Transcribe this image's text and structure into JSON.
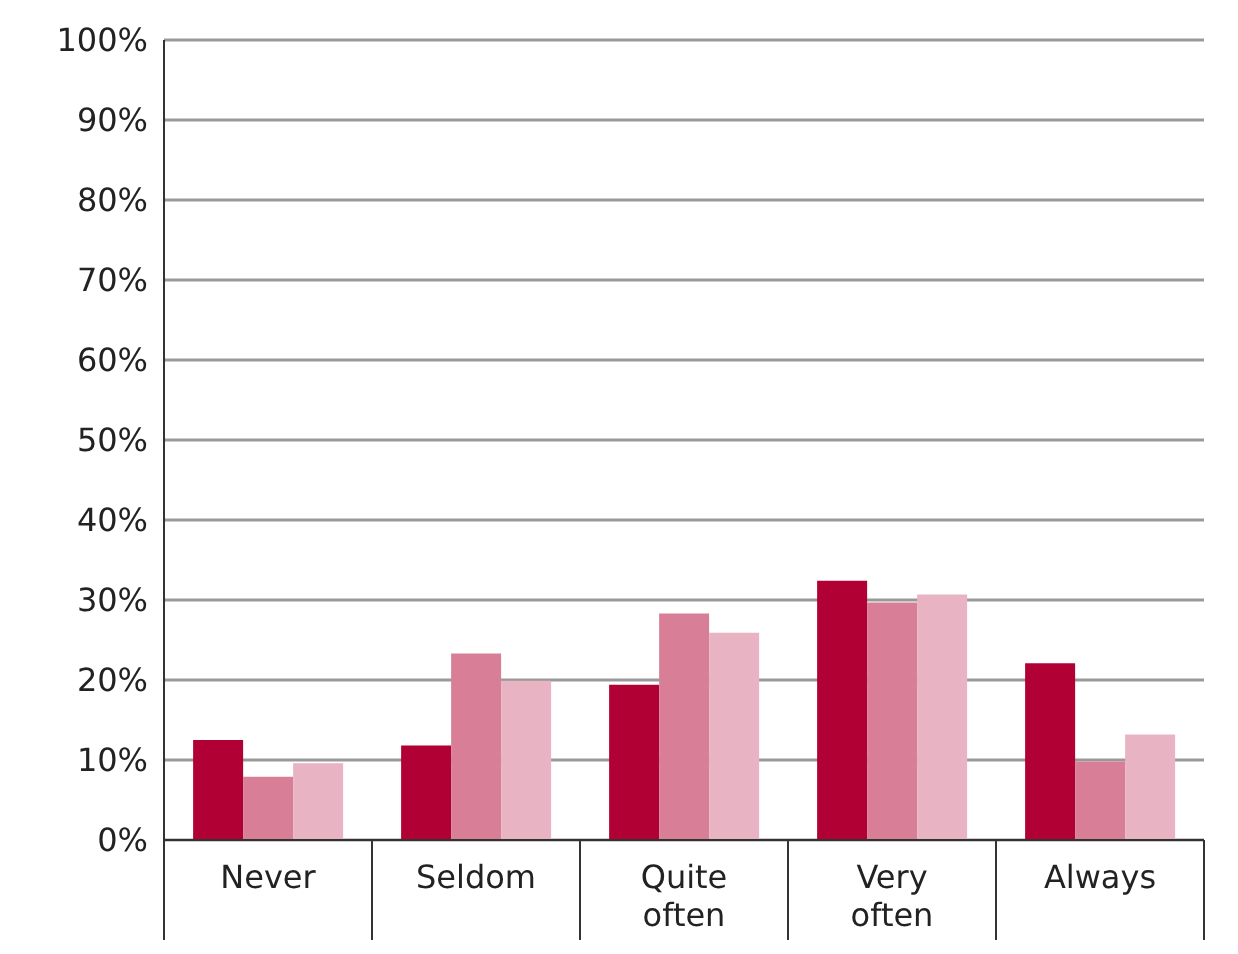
{
  "chart_data": {
    "type": "bar",
    "categories": [
      "Never",
      "Seldom",
      "Quite often",
      "Very often",
      "Always"
    ],
    "series": [
      {
        "color": "#b00034",
        "values": [
          12.5,
          11.8,
          19.4,
          32.4,
          22.1
        ]
      },
      {
        "color": "#d87f97",
        "values": [
          7.9,
          23.3,
          28.3,
          29.7,
          9.8
        ]
      },
      {
        "color": "#e8b3c3",
        "values": [
          9.6,
          19.9,
          25.9,
          30.7,
          13.2
        ]
      }
    ],
    "ylim": [
      0,
      100
    ],
    "yticks": [
      {
        "value": 0,
        "label": "0%"
      },
      {
        "value": 10,
        "label": "10%"
      },
      {
        "value": 20,
        "label": "20%"
      },
      {
        "value": 30,
        "label": "30%"
      },
      {
        "value": 40,
        "label": "40%"
      },
      {
        "value": 50,
        "label": "50%"
      },
      {
        "value": 60,
        "label": "60%"
      },
      {
        "value": 70,
        "label": "70%"
      },
      {
        "value": 80,
        "label": "80%"
      },
      {
        "value": 90,
        "label": "90%"
      },
      {
        "value": 100,
        "label": "100%"
      }
    ],
    "grid": "y",
    "legend": false
  }
}
